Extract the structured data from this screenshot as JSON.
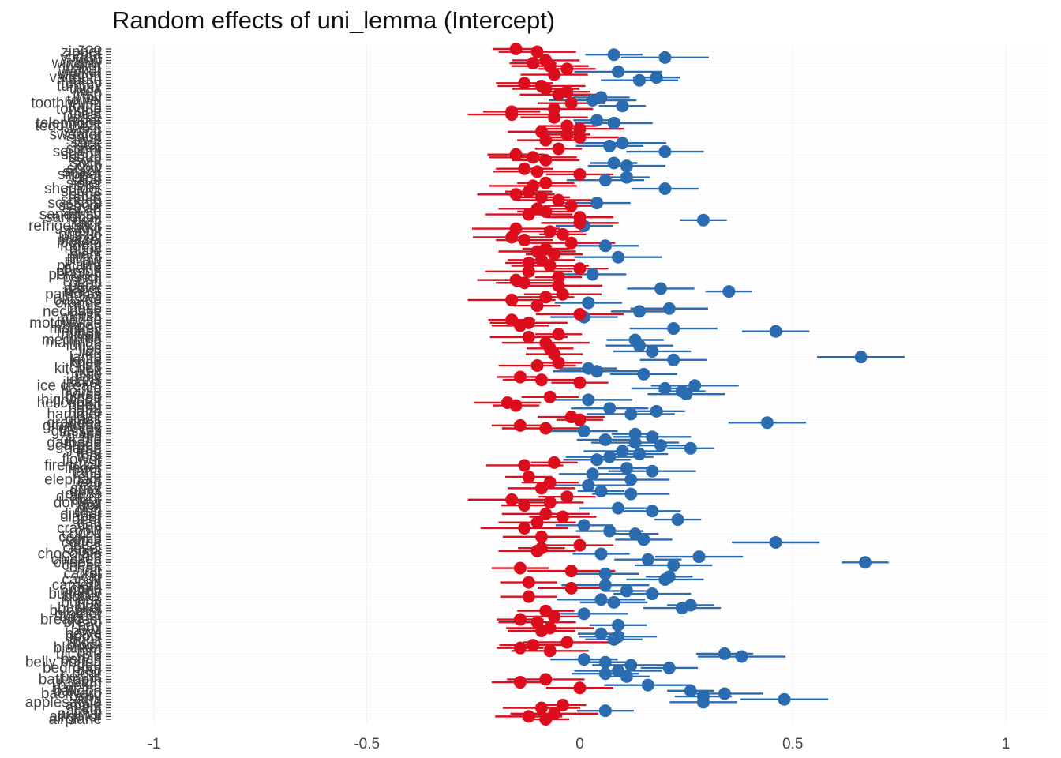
{
  "chart_data": {
    "type": "scatter",
    "title": "Random effects of uni_lemma (Intercept)",
    "xlabel": "",
    "ylabel": "",
    "xlim": [
      -1.1,
      1.1
    ],
    "xticks": [
      -1,
      -0.5,
      0,
      0.5,
      1
    ],
    "xtick_labels": [
      "-1",
      "-0.5",
      "0",
      "0.5",
      "1"
    ],
    "grid": "horizontal and vertical, very light",
    "legend": "none",
    "colors": {
      "positive": "#2b6cb0",
      "negative": "#dc0e1e",
      "grid": "#f0f0f0",
      "label": "#444444"
    },
    "categories": [
      "airplane",
      "alligator",
      "animal",
      "ankle",
      "ant",
      "apple",
      "applesauce",
      "arm",
      "baby",
      "backyard",
      "balloon",
      "banana",
      "basket",
      "bath",
      "bathroom",
      "beads",
      "bear",
      "bed",
      "bedroom",
      "bee",
      "belly button",
      "bench",
      "bib",
      "bicycle",
      "bird",
      "blanket",
      "block",
      "boat",
      "book",
      "boots",
      "bottle",
      "bowl",
      "box",
      "boy",
      "bread",
      "breakfast",
      "broom",
      "brother",
      "bubbles",
      "bucket",
      "bug",
      "bunny",
      "bus",
      "butter",
      "butterfly",
      "button",
      "cake",
      "camera",
      "can",
      "candy",
      "car",
      "carrot",
      "cat",
      "chair",
      "cheek",
      "cheese",
      "chicken",
      "chin",
      "chocolate",
      "clock",
      "closet",
      "coat",
      "coffee",
      "comb",
      "cookie",
      "couch",
      "cow",
      "crayon",
      "cup",
      "dad",
      "deer",
      "diaper",
      "dinner",
      "dish",
      "dog",
      "doll",
      "donkey",
      "door",
      "drawer",
      "dress",
      "drink",
      "duck",
      "ear",
      "egg",
      "elephant",
      "eye",
      "face",
      "farm",
      "finger",
      "fire truck",
      "fish",
      "flower",
      "foot",
      "fork",
      "frog",
      "game",
      "garage",
      "garbage",
      "giraffe",
      "girl",
      "glass",
      "glasses",
      "gloves",
      "grandma",
      "grandpa",
      "grass",
      "hair",
      "hammer",
      "hand",
      "hat",
      "head",
      "helicopter",
      "highchair",
      "hippo",
      "horse",
      "house",
      "ice",
      "ice cream",
      "jacket",
      "jeans",
      "jelly",
      "juice",
      "key",
      "kitchen",
      "kitty",
      "knee",
      "knife",
      "lamp",
      "leg",
      "lion",
      "lips",
      "lunch",
      "mailman",
      "medicine",
      "milk",
      "mitten",
      "money",
      "monkey",
      "moon",
      "motorcycle",
      "mouse",
      "mouth",
      "neck",
      "necklace",
      "nose",
      "nuts",
      "orange",
      "outside",
      "owl",
      "pajamas",
      "pants",
      "paper",
      "party",
      "peas",
      "pen",
      "pencil",
      "penguin",
      "person",
      "pickle",
      "picture",
      "pig",
      "pillow",
      "pizza",
      "plant",
      "plate",
      "pony",
      "porch",
      "potato",
      "pretzel",
      "puppy",
      "puzzle",
      "rabbit",
      "radio",
      "refrigerator",
      "rock",
      "room",
      "sandbox",
      "sandwich",
      "sauce",
      "scarf",
      "school",
      "scissors",
      "sheep",
      "shirt",
      "shoe",
      "shorts",
      "shoulder",
      "sink",
      "sister",
      "slide",
      "sled",
      "slipper",
      "snack",
      "snow",
      "soap",
      "sock",
      "sofa",
      "soup",
      "spoon",
      "squirrel",
      "stairs",
      "star",
      "stick",
      "stove",
      "sun",
      "sweater",
      "swing",
      "table",
      "teddybear",
      "telephone",
      "tiger",
      "tissue",
      "toast",
      "toe",
      "tongue",
      "tooth",
      "toothbrush",
      "towel",
      "toy",
      "train",
      "tree",
      "truck",
      "tummy",
      "turkey",
      "turtle",
      "vacuum",
      "wagon",
      "walker",
      "watch",
      "water",
      "window",
      "wolf",
      "yogurt",
      "zebra",
      "zipper",
      "zoo"
    ],
    "x": [
      -0.08,
      -0.12,
      -0.06,
      0.06,
      -0.09,
      -0.04,
      0.29,
      0.48,
      0.29,
      0.34,
      0.26,
      0.0,
      0.16,
      -0.14,
      -0.08,
      0.11,
      0.06,
      0.09,
      0.21,
      0.12,
      0.06,
      0.01,
      0.38,
      0.34,
      -0.07,
      -0.14,
      -0.11,
      -0.03,
      0.08,
      0.09,
      0.05,
      -0.09,
      -0.07,
      0.09,
      -0.1,
      -0.14,
      -0.06,
      0.01,
      -0.08,
      0.24,
      0.26,
      0.08,
      0.05,
      -0.12,
      0.17,
      0.11,
      -0.02,
      0.06,
      -0.12,
      0.2,
      0.21,
      0.06,
      -0.02,
      -0.14,
      0.22,
      0.67,
      0.16,
      0.28,
      0.05,
      -0.1,
      -0.09,
      0.0,
      0.46,
      0.15,
      -0.09,
      0.13,
      0.07,
      -0.13,
      0.01,
      -0.1,
      0.23,
      -0.04,
      -0.08,
      0.17,
      0.09,
      -0.13,
      -0.07,
      -0.16,
      -0.03,
      0.12,
      0.05,
      -0.09,
      0.02,
      -0.07,
      0.12,
      -0.12,
      0.03,
      0.17,
      0.11,
      -0.13,
      -0.06,
      0.04,
      0.07,
      0.14,
      0.1,
      0.26,
      0.19,
      0.13,
      0.06,
      0.17,
      0.13,
      0.01,
      -0.08,
      -0.14,
      0.44,
      0.0,
      -0.02,
      0.12,
      0.18,
      0.07,
      -0.15,
      -0.17,
      0.02,
      -0.07,
      0.25,
      0.24,
      0.2,
      0.27,
      0.0,
      -0.09,
      -0.14,
      0.15,
      0.04,
      0.02,
      -0.1,
      -0.05,
      0.22,
      0.66,
      -0.06,
      0.17,
      -0.07,
      0.14,
      -0.08,
      0.13,
      -0.12,
      -0.05,
      0.46,
      0.22,
      -0.14,
      -0.12,
      -0.16,
      0.01,
      0.0,
      0.14,
      0.21,
      -0.1,
      0.02,
      -0.16,
      -0.08,
      -0.04,
      0.35,
      0.19,
      -0.05,
      -0.13,
      -0.15,
      -0.05,
      0.03,
      -0.12,
      0.0,
      -0.07,
      -0.12,
      -0.09,
      0.09,
      -0.06,
      -0.1,
      -0.08,
      0.06,
      -0.02,
      -0.13,
      -0.16,
      -0.04,
      -0.07,
      -0.15,
      0.01,
      0.0,
      0.29,
      0.0,
      -0.12,
      -0.08,
      -0.1,
      -0.02,
      0.04,
      -0.05,
      -0.09,
      -0.15,
      -0.12,
      0.2,
      -0.11,
      -0.08,
      0.06,
      0.11,
      0.0,
      -0.1,
      -0.13,
      0.11,
      0.08,
      -0.08,
      -0.11,
      -0.15,
      0.2,
      -0.05,
      0.07,
      0.1,
      -0.08,
      0.0,
      -0.03,
      -0.09,
      0.0,
      -0.03,
      0.08,
      0.04,
      -0.06,
      -0.16,
      -0.16,
      -0.06,
      0.1,
      -0.02,
      0.03,
      0.05,
      -0.05,
      -0.03,
      -0.08,
      -0.09,
      -0.13,
      0.14,
      0.18,
      -0.06,
      0.09,
      -0.03,
      -0.07,
      -0.11,
      -0.08,
      0.2,
      0.08,
      -0.1,
      -0.15
    ]
  }
}
